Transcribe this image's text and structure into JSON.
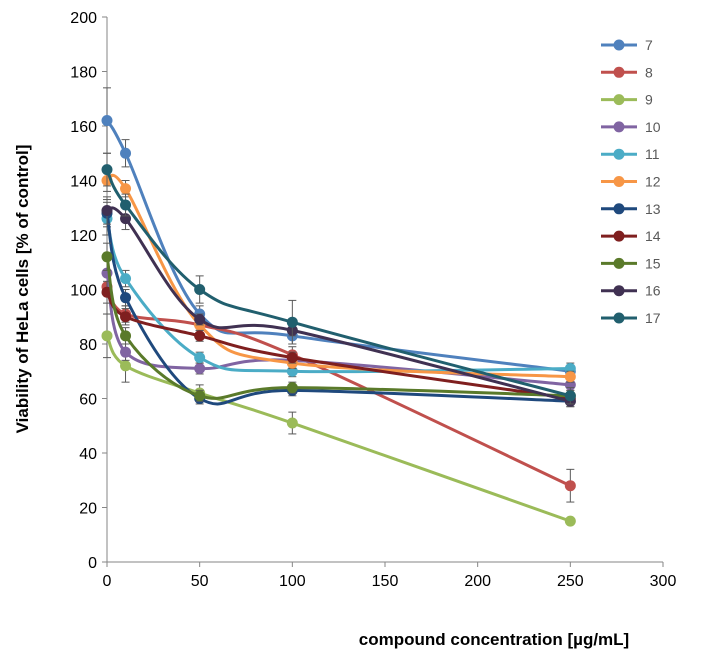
{
  "chart_data": {
    "type": "line",
    "title": "",
    "xlabel": "compound concentration [µg/mL]",
    "ylabel": "Viability of HeLa cells [% of control]",
    "xlim": [
      0,
      300
    ],
    "ylim": [
      0,
      200
    ],
    "x_ticks": [
      "0",
      "50",
      "100",
      "150",
      "200",
      "250",
      "300"
    ],
    "y_ticks": [
      "0",
      "20",
      "40",
      "60",
      "80",
      "100",
      "120",
      "140",
      "160",
      "180",
      "200"
    ],
    "grid": false,
    "legend_position": "top-right",
    "x": [
      0,
      10,
      50,
      100,
      250
    ],
    "series": [
      {
        "name": "7",
        "color": "#4f81bd",
        "values": [
          162,
          150,
          91,
          83,
          70
        ],
        "errors": [
          12,
          5,
          3,
          3,
          2
        ]
      },
      {
        "name": "8",
        "color": "#c0504d",
        "values": [
          101,
          91,
          87,
          76,
          28
        ],
        "errors": [
          10,
          3,
          3,
          3,
          6
        ]
      },
      {
        "name": "9",
        "color": "#9bbb59",
        "values": [
          83,
          72,
          62,
          51,
          15
        ],
        "errors": [
          8,
          6,
          3,
          4,
          1
        ]
      },
      {
        "name": "10",
        "color": "#8064a2",
        "values": [
          106,
          77,
          71,
          74,
          65
        ],
        "errors": [
          6,
          3,
          2,
          2,
          2
        ]
      },
      {
        "name": "11",
        "color": "#4bacc6",
        "values": [
          126,
          104,
          75,
          70,
          71
        ],
        "errors": [
          6,
          3,
          2,
          2,
          2
        ]
      },
      {
        "name": "12",
        "color": "#f79646",
        "values": [
          140,
          137,
          87,
          73,
          68
        ],
        "errors": [
          4,
          3,
          2,
          2,
          2
        ]
      },
      {
        "name": "13",
        "color": "#1f497d",
        "values": [
          128,
          97,
          60,
          63,
          59
        ],
        "errors": [
          5,
          3,
          2,
          2,
          2
        ]
      },
      {
        "name": "14",
        "color": "#7f1f1f",
        "values": [
          99,
          90,
          83,
          75,
          60
        ],
        "errors": [
          4,
          3,
          2,
          2,
          2
        ]
      },
      {
        "name": "15",
        "color": "#5a7a2a",
        "values": [
          112,
          83,
          61,
          64,
          61
        ],
        "errors": [
          5,
          3,
          2,
          2,
          2
        ]
      },
      {
        "name": "16",
        "color": "#403152",
        "values": [
          129,
          126,
          89,
          85,
          59
        ],
        "errors": [
          5,
          4,
          2,
          2,
          2
        ]
      },
      {
        "name": "17",
        "color": "#215f6e",
        "values": [
          144,
          131,
          100,
          88,
          61
        ],
        "errors": [
          6,
          4,
          5,
          8,
          3
        ]
      }
    ]
  }
}
